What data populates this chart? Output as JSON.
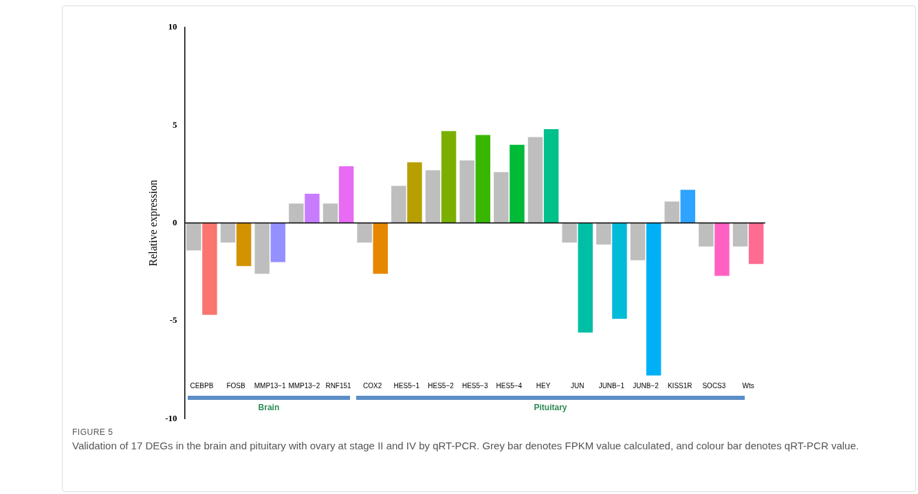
{
  "chart_data": {
    "type": "bar",
    "ylabel": "Relative expression",
    "categories": [
      "CEBPB",
      "FOSB",
      "MMP13−1",
      "MMP13−2",
      "RNF151",
      "COX2",
      "HES5−1",
      "HES5−2",
      "HES5−3",
      "HES5−4",
      "HEY",
      "JUN",
      "JUNB−1",
      "JUNB−2",
      "KISS1R",
      "SOCS3",
      "Wts"
    ],
    "series": [
      {
        "color": "#bebebe",
        "values": [
          -1.4,
          -1.0,
          -2.6,
          1.0,
          1.0,
          -1.0,
          1.9,
          2.7,
          3.2,
          2.6,
          4.4,
          -1.0,
          -1.1,
          -1.9,
          1.1,
          -1.2,
          -1.2
        ]
      },
      {
        "colors": [
          "#f8766d",
          "#d39200",
          "#9590ff",
          "#c77cff",
          "#e76bf3",
          "#e58700",
          "#b79f00",
          "#7cae00",
          "#39b600",
          "#00ba38",
          "#00c08b",
          "#00bfa5",
          "#00bcd8",
          "#00b0f6",
          "#2ea3ff",
          "#ff61c3",
          "#ff6c91"
        ],
        "values": [
          -4.7,
          -2.2,
          -2.0,
          1.5,
          2.9,
          -2.6,
          3.1,
          4.7,
          4.5,
          4.0,
          4.8,
          -5.6,
          -4.9,
          -7.8,
          1.7,
          -2.7,
          -2.1
        ]
      }
    ],
    "ref_lines": [
      {
        "axis": "y",
        "value": 0,
        "color": "#000000"
      }
    ],
    "ylim": [
      -10,
      10
    ],
    "yticks": [
      -10,
      -5,
      0,
      5,
      10
    ],
    "grid": false,
    "legend": false,
    "annotations": [
      "Brain",
      "Pituitary",
      "FIGURE 5",
      "Validation of 17 DEGs in the brain and pituitary with ovary at stage II and IV by qRT-PCR. Grey bar denotes FPKM value calculated, and colour bar denotes qRT-PCR value."
    ]
  }
}
